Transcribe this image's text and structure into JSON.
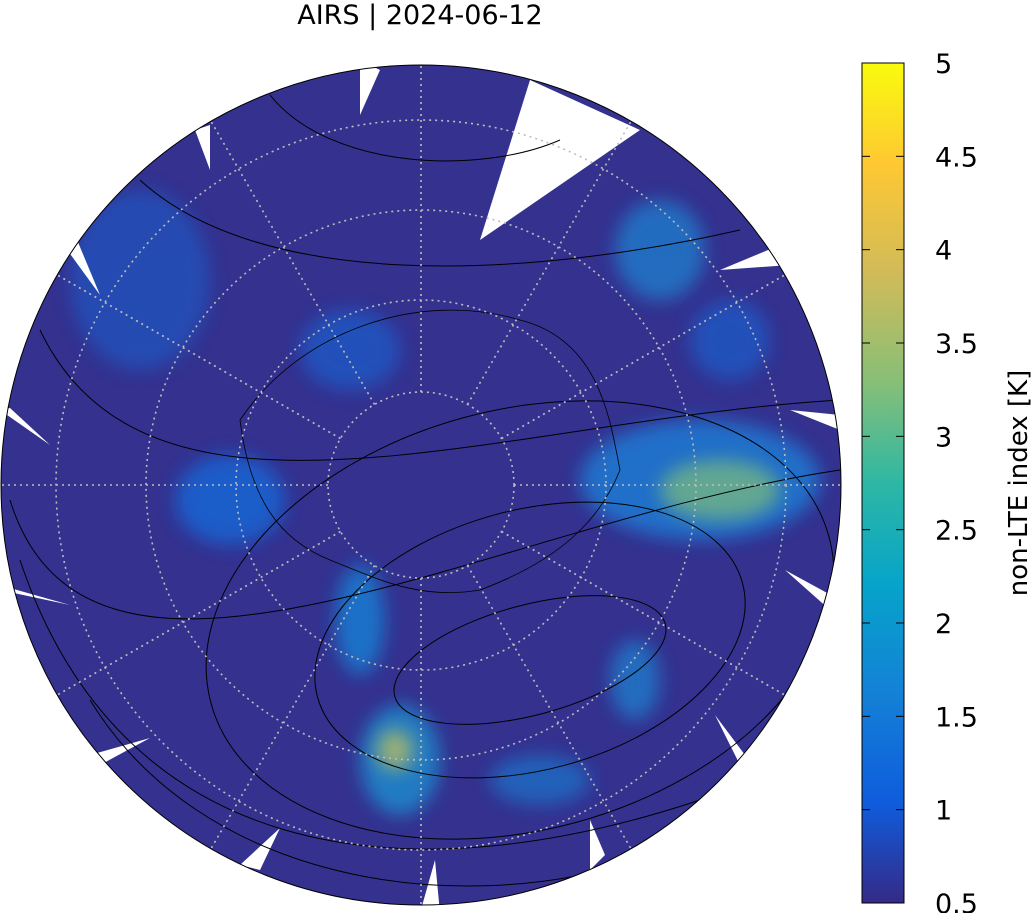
{
  "title": "AIRS | 2024-06-12",
  "colorbar": {
    "label": "non-LTE index [K]",
    "lim": [
      0.5,
      5
    ],
    "ticks": [
      0.5,
      1,
      1.5,
      2,
      2.5,
      3,
      3.5,
      4,
      4.5,
      5
    ]
  }
}
